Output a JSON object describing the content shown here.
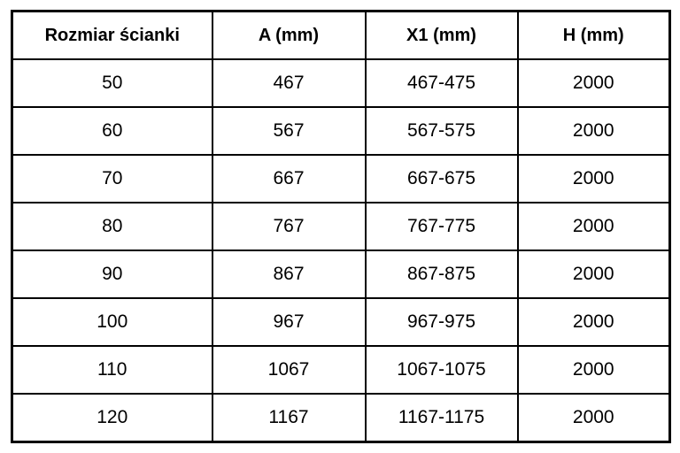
{
  "table": {
    "headers": [
      "Rozmiar ścianki",
      "A (mm)",
      "X1 (mm)",
      "H (mm)"
    ],
    "rows": [
      [
        "50",
        "467",
        "467-475",
        "2000"
      ],
      [
        "60",
        "567",
        "567-575",
        "2000"
      ],
      [
        "70",
        "667",
        "667-675",
        "2000"
      ],
      [
        "80",
        "767",
        "767-775",
        "2000"
      ],
      [
        "90",
        "867",
        "867-875",
        "2000"
      ],
      [
        "100",
        "967",
        "967-975",
        "2000"
      ],
      [
        "110",
        "1067",
        "1067-1075",
        "2000"
      ],
      [
        "120",
        "1167",
        "1167-1175",
        "2000"
      ]
    ],
    "border_color": "#000000",
    "background_color": "#ffffff",
    "text_color": "#000000"
  }
}
